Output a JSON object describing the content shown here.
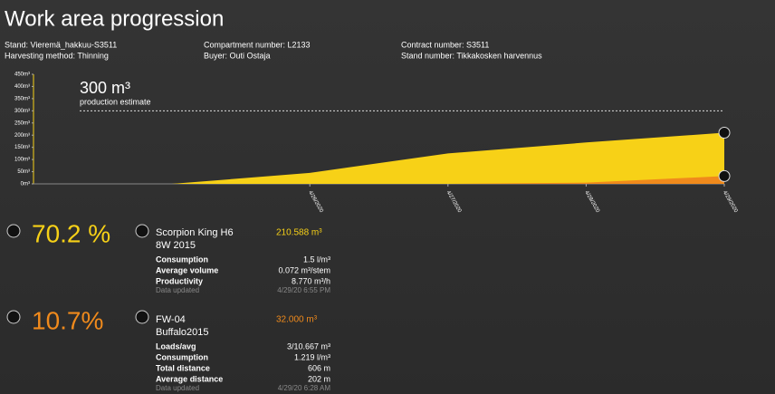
{
  "header": {
    "title": "Work area progression",
    "info": [
      "Stand: Vieremä_hakkuu-S3511",
      "Compartment number: L2133",
      "Contract number: S3511",
      "Harvesting method: Thinning",
      "Buyer: Outi Ostaja",
      "Stand number: Tikkakosken harvennus"
    ]
  },
  "chart_data": {
    "type": "area",
    "x": [
      "4/25/2020",
      "4/26/2020",
      "4/27/2020",
      "4/28/2020",
      "4/29/2020"
    ],
    "series": [
      {
        "color": "#f7d117",
        "values": [
          0,
          45,
          125,
          170,
          210
        ]
      },
      {
        "color": "#f08a1c",
        "values": [
          0,
          0,
          0,
          5,
          32
        ]
      }
    ],
    "xlim": [
      "4/24/2020",
      "4/29/2020"
    ],
    "xticks": [
      "4/26/2020",
      "4/27/2020",
      "4/28/2020",
      "4/29/2020"
    ],
    "ylim": [
      0,
      450
    ],
    "yticks": [
      {
        "value": 0,
        "label": "0m³"
      },
      {
        "value": 50,
        "label": "50m³"
      },
      {
        "value": 100,
        "label": "100m³"
      },
      {
        "value": 150,
        "label": "150m³"
      },
      {
        "value": 200,
        "label": "200m³"
      },
      {
        "value": 250,
        "label": "250m³"
      },
      {
        "value": 300,
        "label": "300m³"
      },
      {
        "value": 350,
        "label": "350m³"
      },
      {
        "value": 400,
        "label": "400m³"
      },
      {
        "value": 450,
        "label": "450m³"
      }
    ],
    "grid": false,
    "estimate": {
      "value": 300,
      "label": "300 m³",
      "text": "production estimate"
    }
  },
  "machines": [
    {
      "share": "70.2 %",
      "name": "Scorpion King H6",
      "model": "8W 2015",
      "volume": "210.588 m³",
      "rows": [
        [
          "Consumption",
          "1.5 l/m³"
        ],
        [
          "Average volume",
          "0.072 m³/stem"
        ],
        [
          "Productivity",
          "8.770 m³/h"
        ]
      ],
      "updated_label": "Data updated",
      "updated": "4/29/20 6:55 PM"
    },
    {
      "share": "10.7%",
      "name": "FW-04",
      "model": "Buffalo2015",
      "volume": "32.000 m³",
      "rows": [
        [
          "Loads/avg",
          "3/10.667 m³"
        ],
        [
          "Consumption",
          "1.219 l/m³"
        ],
        [
          "Total distance",
          "606 m"
        ],
        [
          "Average distance",
          "202 m"
        ]
      ],
      "updated_label": "Data updated",
      "updated": "4/29/20 6:28 AM"
    }
  ]
}
